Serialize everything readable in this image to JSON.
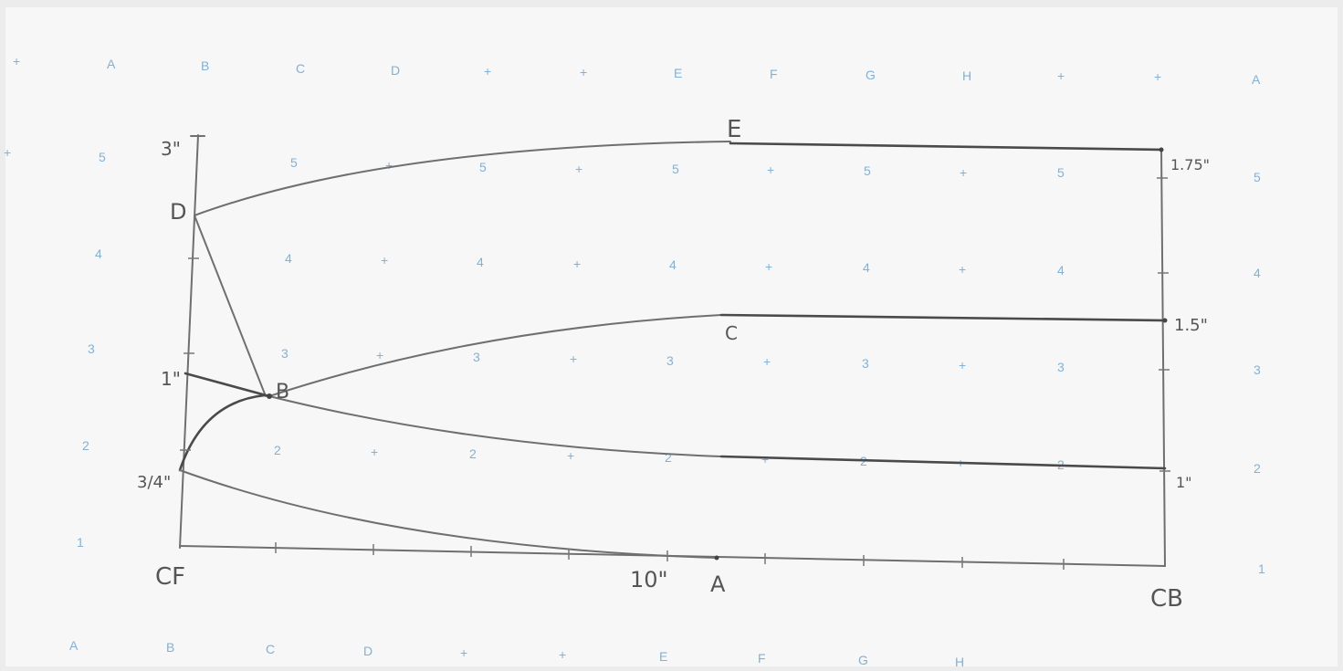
{
  "grid": {
    "columns_top": [
      "+",
      "A",
      "B",
      "C",
      "D",
      "+",
      "+",
      "E",
      "F",
      "G",
      "H",
      "+",
      "+",
      "A"
    ],
    "columns_bottom": [
      "A",
      "B",
      "C",
      "D",
      "+",
      "+",
      "E",
      "F",
      "G",
      "H"
    ],
    "row_labels": [
      "5",
      "4",
      "3",
      "2",
      "1"
    ],
    "row_marks": [
      "+",
      "5",
      "4",
      "3",
      "2",
      "1"
    ]
  },
  "labels": {
    "cf": "CF",
    "cb": "CB",
    "point_a": "A",
    "point_b": "B",
    "point_c": "C",
    "point_d": "D",
    "point_e": "E",
    "dim_3in": "3\"",
    "dim_1in_left": "1\"",
    "dim_3_4in": "3/4\"",
    "dim_10in": "10\"",
    "dim_1_75in": "1.75\"",
    "dim_1_5in": "1.5\"",
    "dim_1in_right": "1\""
  },
  "colors": {
    "paper": "#ececec",
    "grid_print": "#7fb2d8",
    "pencil": "#5a5a5a"
  }
}
